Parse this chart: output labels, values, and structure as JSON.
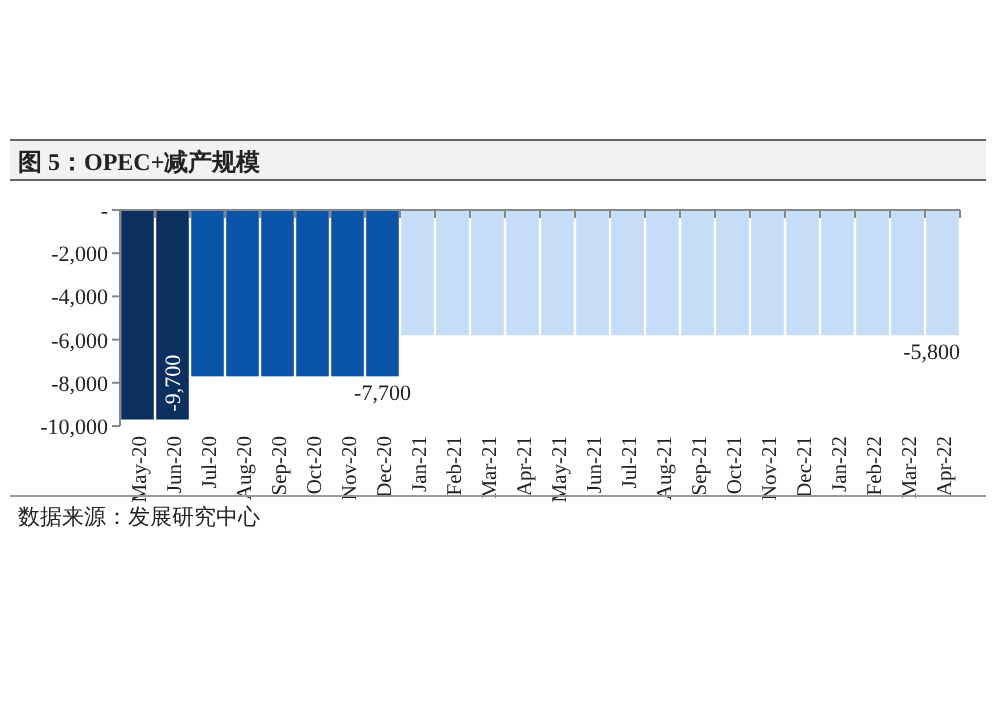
{
  "chart_data": {
    "type": "bar",
    "title": "图 5：OPEC+减产规模",
    "categories": [
      "May-20",
      "Jun-20",
      "Jul-20",
      "Aug-20",
      "Sep-20",
      "Oct-20",
      "Nov-20",
      "Dec-20",
      "Jan-21",
      "Feb-21",
      "Mar-21",
      "Apr-21",
      "May-21",
      "Jun-21",
      "Jul-21",
      "Aug-21",
      "Sep-21",
      "Oct-21",
      "Nov-21",
      "Dec-21",
      "Jan-22",
      "Feb-22",
      "Mar-22",
      "Apr-22"
    ],
    "values": [
      -9700,
      -9700,
      -7700,
      -7700,
      -7700,
      -7700,
      -7700,
      -7700,
      -5800,
      -5800,
      -5800,
      -5800,
      -5800,
      -5800,
      -5800,
      -5800,
      -5800,
      -5800,
      -5800,
      -5800,
      -5800,
      -5800,
      -5800,
      -5800
    ],
    "colors": [
      "#0b2f5e",
      "#0b2f5e",
      "#0a55a8",
      "#0a55a8",
      "#0a55a8",
      "#0a55a8",
      "#0a55a8",
      "#0a55a8",
      "#c5ddf7",
      "#c5ddf7",
      "#c5ddf7",
      "#c5ddf7",
      "#c5ddf7",
      "#c5ddf7",
      "#c5ddf7",
      "#c5ddf7",
      "#c5ddf7",
      "#c5ddf7",
      "#c5ddf7",
      "#c5ddf7",
      "#c5ddf7",
      "#c5ddf7",
      "#c5ddf7",
      "#c5ddf7"
    ],
    "value_labels": [
      null,
      "-9,700",
      null,
      null,
      null,
      null,
      null,
      "-7,700",
      null,
      null,
      null,
      null,
      null,
      null,
      null,
      null,
      null,
      null,
      null,
      null,
      null,
      null,
      null,
      "-5,800"
    ],
    "ylim": [
      -10000,
      0
    ],
    "yticks": [
      {
        "value": 0,
        "label": "-"
      },
      {
        "value": -2000,
        "label": "-2,000"
      },
      {
        "value": -4000,
        "label": "-4,000"
      },
      {
        "value": -6000,
        "label": "-6,000"
      },
      {
        "value": -8000,
        "label": "-8,000"
      },
      {
        "value": -10000,
        "label": "-10,000"
      }
    ],
    "annotations": [
      "数据来源：发展研究中心"
    ]
  }
}
